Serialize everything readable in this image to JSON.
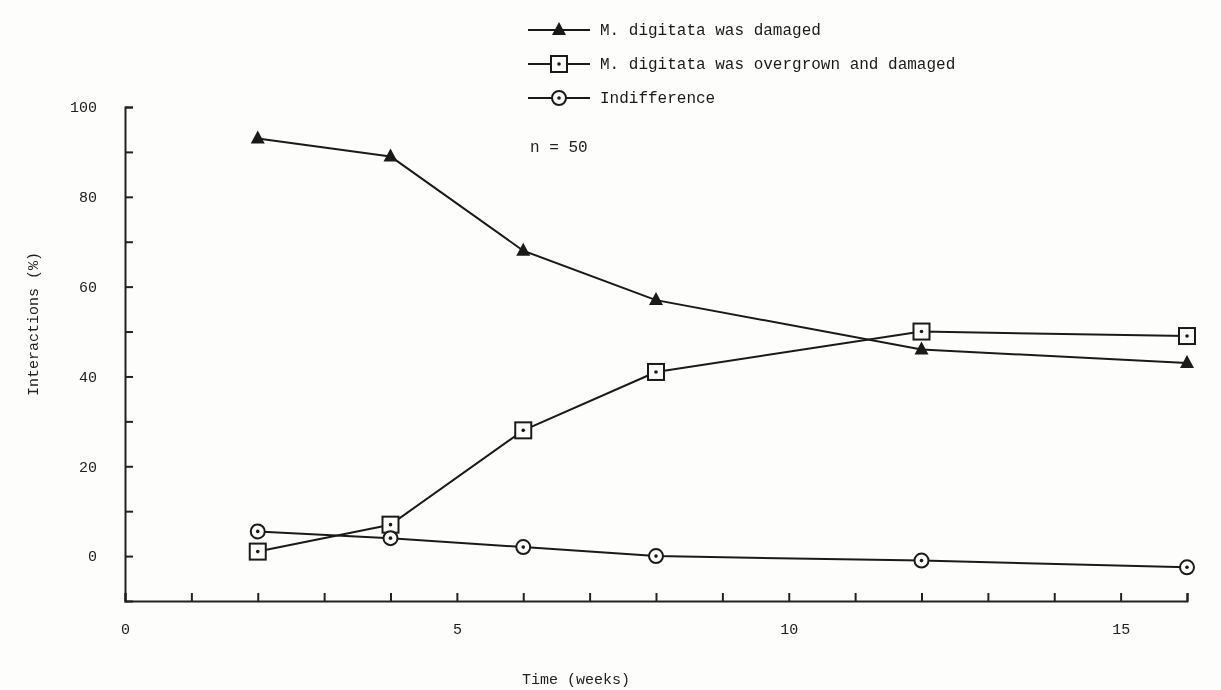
{
  "chart_data": {
    "type": "line",
    "xlabel": "Time (weeks)",
    "ylabel": "Interactions (%)",
    "x": [
      2,
      4,
      6,
      8,
      12,
      16
    ],
    "series": [
      {
        "name": "M. digitata was damaged",
        "color": "#1a1a1a",
        "marker": "triangle",
        "values": [
          93,
          89,
          68,
          57,
          46,
          43
        ]
      },
      {
        "name": "M. digitata was overgrown and damaged",
        "color": "#1a1a1a",
        "marker": "square",
        "values": [
          1,
          7,
          28,
          41,
          50,
          49
        ]
      },
      {
        "name": "Indifference",
        "color": "#1a1a1a",
        "marker": "circle",
        "values": [
          5.5,
          4,
          2,
          0,
          -1,
          -2.5
        ]
      }
    ],
    "xlim": [
      0,
      16
    ],
    "xticks": [
      0,
      {
        "value": 1,
        "label": null
      },
      {
        "value": 2,
        "label": null
      },
      {
        "value": 3,
        "label": null
      },
      {
        "value": 4,
        "label": null
      },
      5,
      {
        "value": 6,
        "label": null
      },
      {
        "value": 7,
        "label": null
      },
      {
        "value": 8,
        "label": null
      },
      {
        "value": 9,
        "label": null
      },
      10,
      {
        "value": 11,
        "label": null
      },
      {
        "value": 12,
        "label": null
      },
      {
        "value": 13,
        "label": null
      },
      {
        "value": 14,
        "label": null
      },
      15,
      {
        "value": 16,
        "label": null
      }
    ],
    "ylim": [
      -10,
      100
    ],
    "yticks": [
      0,
      {
        "value": 10,
        "label": null
      },
      20,
      {
        "value": 30,
        "label": null
      },
      40,
      {
        "value": 50,
        "label": null
      },
      60,
      {
        "value": 70,
        "label": null
      },
      80,
      {
        "value": 90,
        "label": null
      },
      100
    ],
    "annotations": [
      "n = 50"
    ],
    "legend": "top right",
    "grid": false,
    "line_style": "solid"
  }
}
